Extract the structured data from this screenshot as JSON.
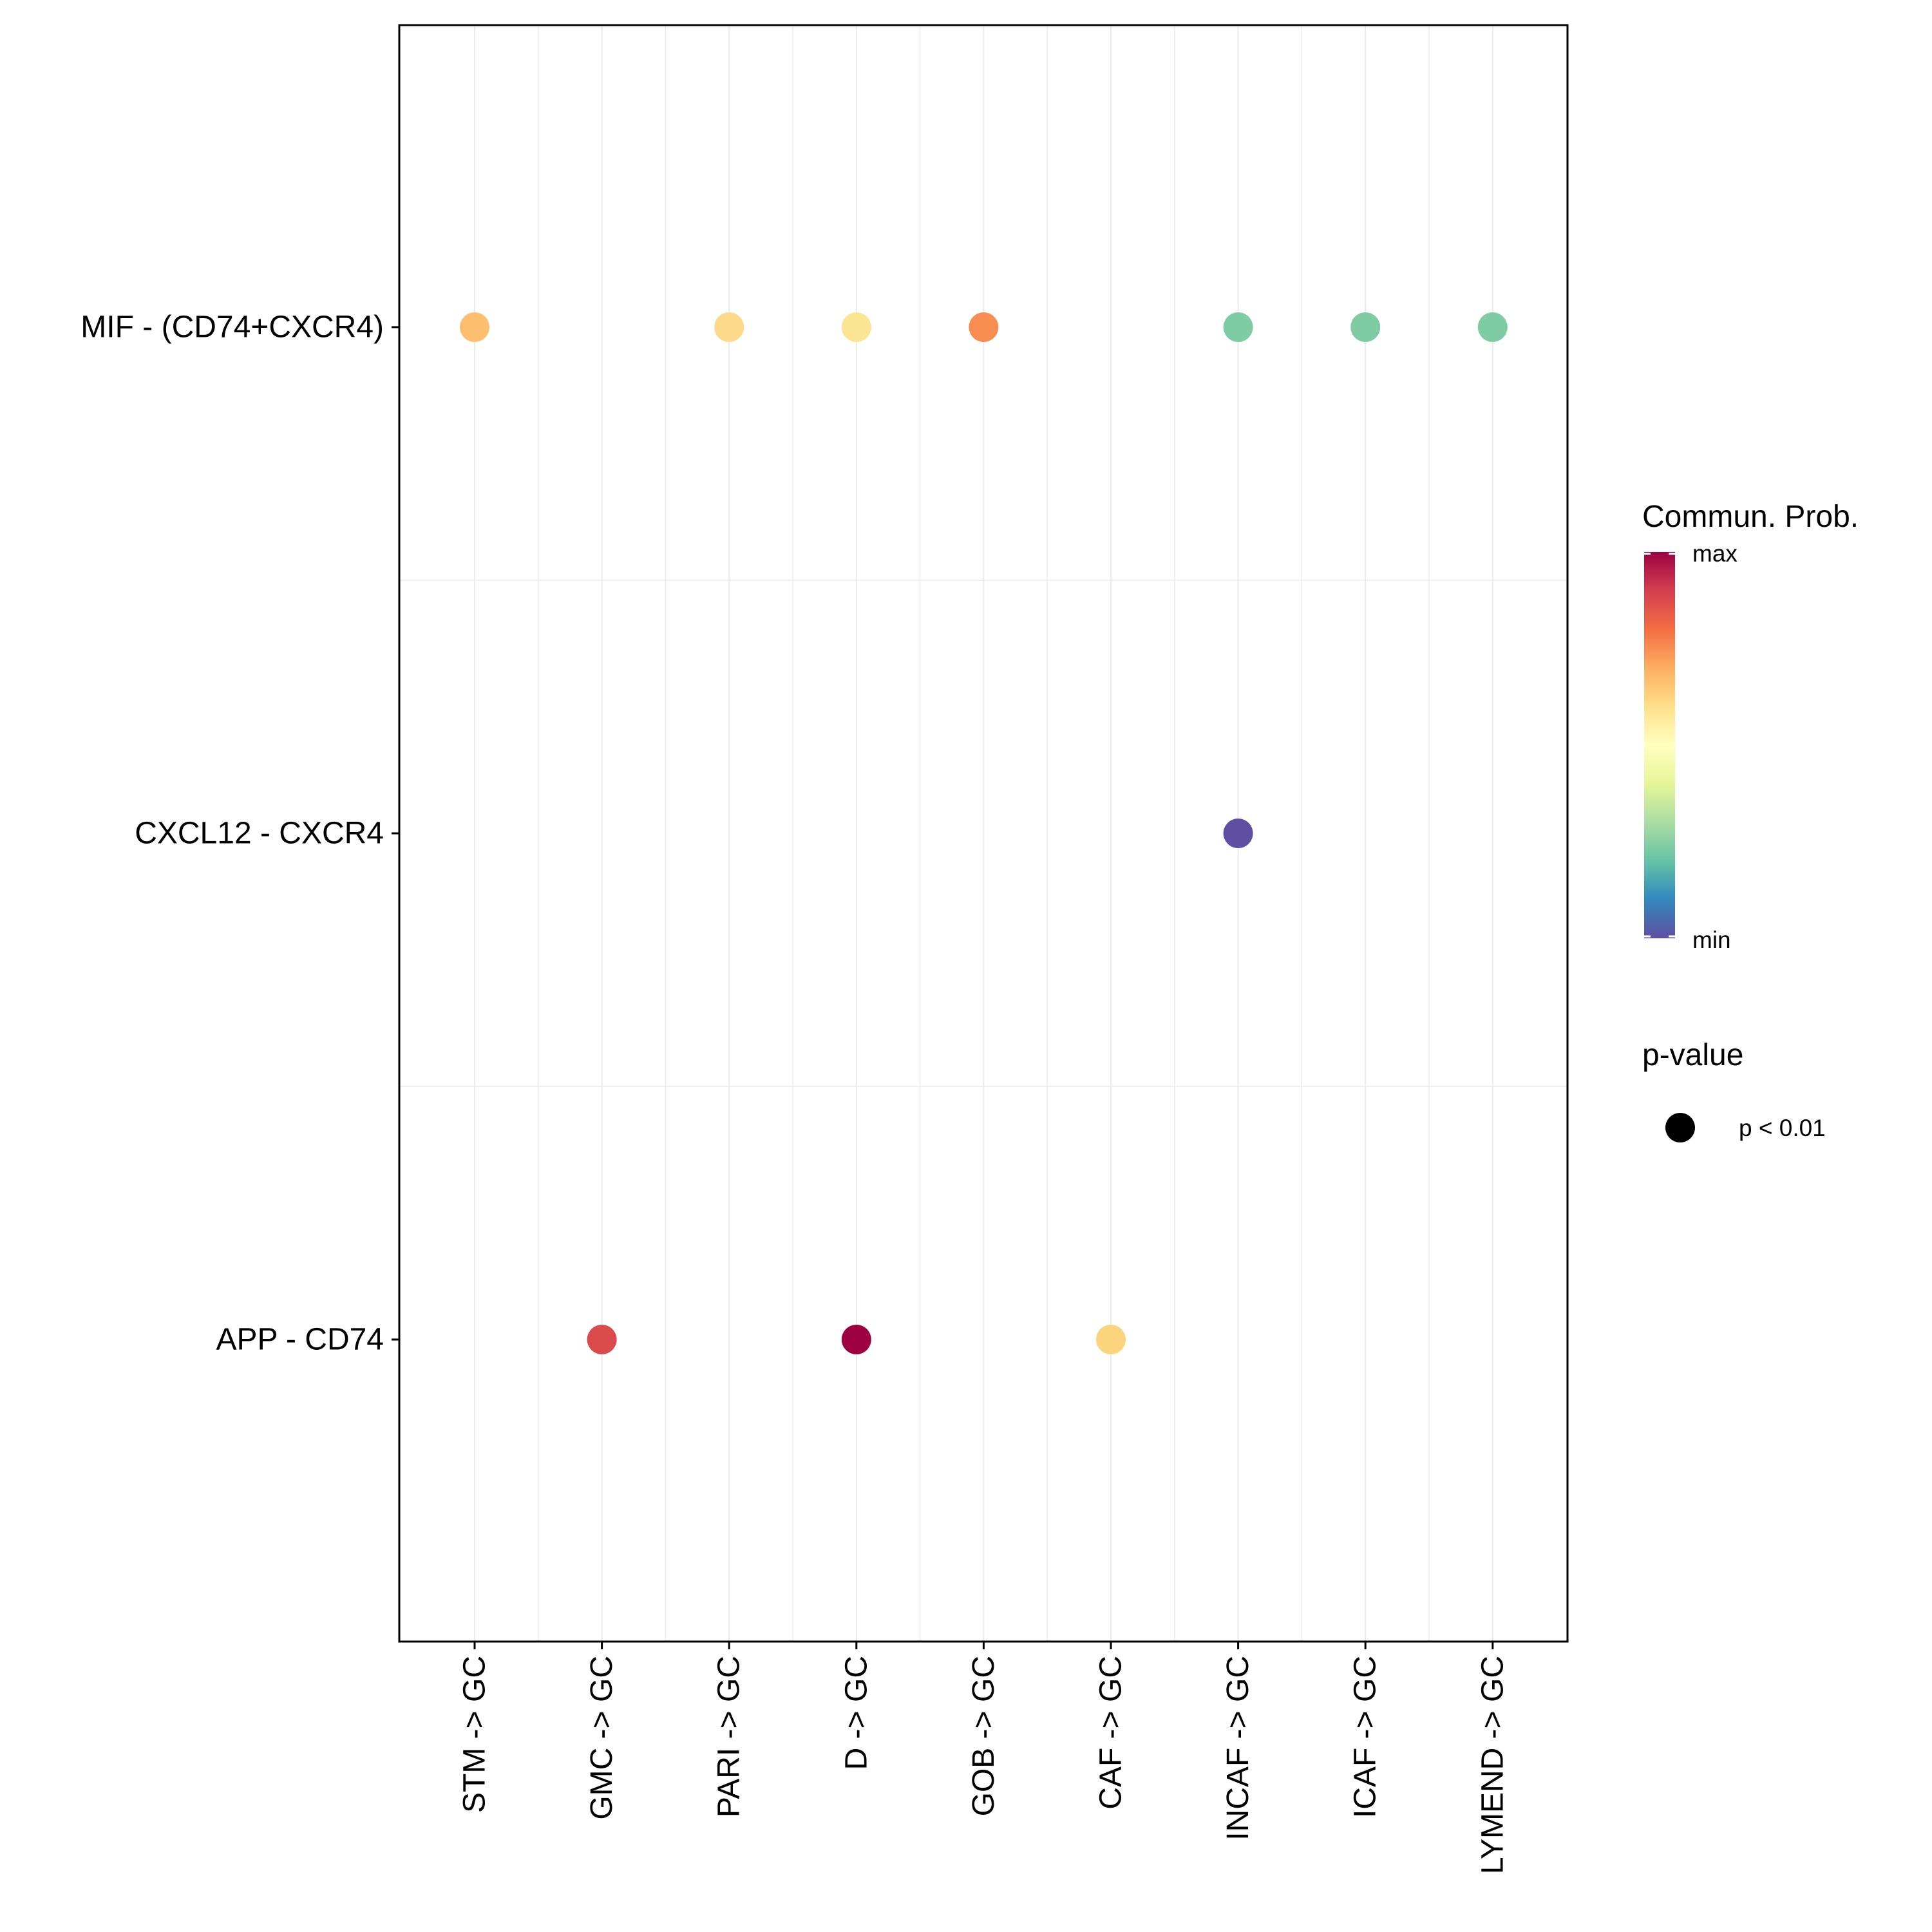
{
  "chart_data": {
    "type": "scatter",
    "title": "",
    "xlabel": "",
    "ylabel": "",
    "x_categories": [
      "STM -> GC",
      "GMC -> GC",
      "PARI -> GC",
      "D -> GC",
      "GOB -> GC",
      "CAF -> GC",
      "INCAF -> GC",
      "ICAF -> GC",
      "LYMEND -> GC"
    ],
    "y_categories": [
      "MIF - (CD74+CXCR4)",
      "CXCL12 - CXCR4",
      "APP - CD74"
    ],
    "points": [
      {
        "x": "STM -> GC",
        "y": "MIF - (CD74+CXCR4)",
        "prob": 0.7,
        "color": "#FDBF6F"
      },
      {
        "x": "PARI -> GC",
        "y": "MIF - (CD74+CXCR4)",
        "prob": 0.66,
        "color": "#FDD98A"
      },
      {
        "x": "D -> GC",
        "y": "MIF - (CD74+CXCR4)",
        "prob": 0.64,
        "color": "#FAE592"
      },
      {
        "x": "GOB -> GC",
        "y": "MIF - (CD74+CXCR4)",
        "prob": 0.8,
        "color": "#F88D52"
      },
      {
        "x": "INCAF -> GC",
        "y": "MIF - (CD74+CXCR4)",
        "prob": 0.33,
        "color": "#7FCBA4"
      },
      {
        "x": "ICAF -> GC",
        "y": "MIF - (CD74+CXCR4)",
        "prob": 0.33,
        "color": "#7FCBA4"
      },
      {
        "x": "LYMEND -> GC",
        "y": "MIF - (CD74+CXCR4)",
        "prob": 0.33,
        "color": "#7FCBA4"
      },
      {
        "x": "INCAF -> GC",
        "y": "CXCL12 - CXCR4",
        "prob": 0.0,
        "color": "#5E4FA2"
      },
      {
        "x": "GMC -> GC",
        "y": "APP - CD74",
        "prob": 0.9,
        "color": "#DC4B4B"
      },
      {
        "x": "D -> GC",
        "y": "APP - CD74",
        "prob": 1.0,
        "color": "#9E0142"
      },
      {
        "x": "CAF -> GC",
        "y": "APP - CD74",
        "prob": 0.67,
        "color": "#FDD47E"
      }
    ],
    "legend": {
      "color_title": "Commun. Prob.",
      "color_max_label": "max",
      "color_min_label": "min",
      "colorbar_colors": [
        "#9E0142",
        "#D53E4F",
        "#F46D43",
        "#FDAE61",
        "#FEE08B",
        "#FFFFBF",
        "#E6F598",
        "#ABDDA4",
        "#66C2A5",
        "#3288BD",
        "#5E4FA2"
      ],
      "size_title": "p-value",
      "size_label": "p < 0.01",
      "size_color": "#000000",
      "position": "right"
    },
    "grid": true
  }
}
